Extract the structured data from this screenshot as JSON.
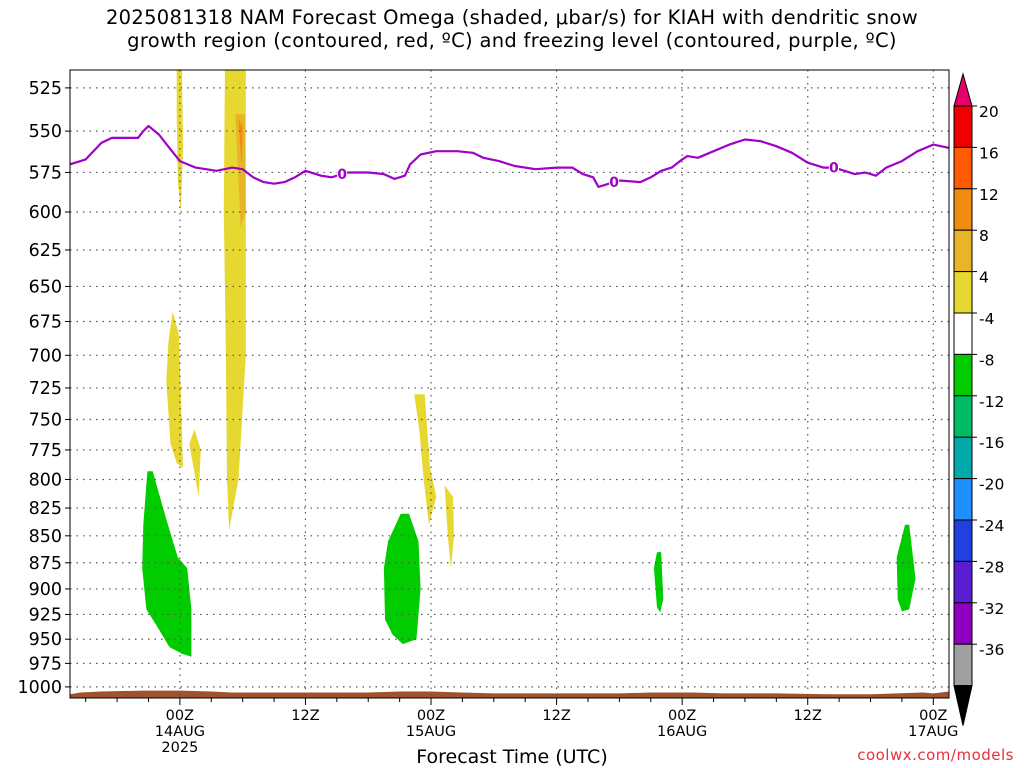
{
  "title_lines": [
    "2025081318 NAM Forecast Omega (shaded, μbar/s) for KIAH with dendritic snow",
    "growth region (contoured, red, ºC) and freezing level (contoured, purple, ºC)"
  ],
  "credit": "coolwx.com/models",
  "colors": {
    "freezing_level": "#a000c8",
    "terrain": "#a0522d",
    "grid": "#555555"
  },
  "chart_data": {
    "type": "heatmap",
    "xlabel": "Forecast Time (UTC)",
    "ylabel": "",
    "x_range_hours": [
      -10.5,
      73.5
    ],
    "x_ticks": [
      {
        "h": 0,
        "lines": [
          "00Z",
          "14AUG",
          "2025"
        ]
      },
      {
        "h": 12,
        "lines": [
          "12Z"
        ]
      },
      {
        "h": 24,
        "lines": [
          "00Z",
          "15AUG"
        ]
      },
      {
        "h": 36,
        "lines": [
          "12Z"
        ]
      },
      {
        "h": 48,
        "lines": [
          "00Z",
          "16AUG"
        ]
      },
      {
        "h": 60,
        "lines": [
          "12Z"
        ]
      },
      {
        "h": 72,
        "lines": [
          "00Z",
          "17AUG"
        ]
      }
    ],
    "y_ticks": [
      525,
      550,
      575,
      600,
      625,
      650,
      675,
      700,
      725,
      750,
      775,
      800,
      825,
      850,
      875,
      900,
      925,
      950,
      975,
      1000
    ],
    "y_range_hPa": [
      515,
      1012
    ],
    "y_scale": "log-pressure (inverted)",
    "grid": true,
    "colorbar": {
      "labels": [
        "20",
        "16",
        "12",
        "8",
        "4",
        "-4",
        "-8",
        "-12",
        "-16",
        "-20",
        "-24",
        "-28",
        "-32",
        "-36"
      ],
      "colors": [
        "#ee0000",
        "#ff5a00",
        "#f08c10",
        "#e8b428",
        "#e6d830",
        "#ffffff",
        "#00cc00",
        "#00bb66",
        "#00aaaa",
        "#1e90ff",
        "#2040e0",
        "#5a1ed2",
        "#9000c0",
        "#a0a0a0"
      ],
      "top_arrow": "#e8006a",
      "bottom_arrow": "#000000"
    },
    "freezing_level_label": "0",
    "freezing_level_0C_hPa": [
      {
        "h": -10.5,
        "p": 570
      },
      {
        "h": -9.0,
        "p": 567
      },
      {
        "h": -7.5,
        "p": 557
      },
      {
        "h": -6.5,
        "p": 554
      },
      {
        "h": -5.0,
        "p": 554
      },
      {
        "h": -4.0,
        "p": 554
      },
      {
        "h": -3.5,
        "p": 550
      },
      {
        "h": -3.0,
        "p": 547
      },
      {
        "h": -2.0,
        "p": 552
      },
      {
        "h": -1.0,
        "p": 560
      },
      {
        "h": 0.0,
        "p": 568
      },
      {
        "h": 1.5,
        "p": 572
      },
      {
        "h": 3.5,
        "p": 574
      },
      {
        "h": 5.0,
        "p": 572
      },
      {
        "h": 6.0,
        "p": 573
      },
      {
        "h": 7.0,
        "p": 578
      },
      {
        "h": 8.0,
        "p": 581
      },
      {
        "h": 9.0,
        "p": 582
      },
      {
        "h": 10.0,
        "p": 581
      },
      {
        "h": 11.0,
        "p": 578
      },
      {
        "h": 12.0,
        "p": 574
      },
      {
        "h": 13.5,
        "p": 577
      },
      {
        "h": 14.5,
        "p": 578
      },
      {
        "h": 16.0,
        "p": 575
      },
      {
        "h": 18.0,
        "p": 575
      },
      {
        "h": 19.5,
        "p": 576
      },
      {
        "h": 20.5,
        "p": 579
      },
      {
        "h": 21.5,
        "p": 577
      },
      {
        "h": 22.0,
        "p": 570
      },
      {
        "h": 23.0,
        "p": 564
      },
      {
        "h": 24.5,
        "p": 562
      },
      {
        "h": 26.5,
        "p": 562
      },
      {
        "h": 28.0,
        "p": 563
      },
      {
        "h": 29.0,
        "p": 566
      },
      {
        "h": 30.5,
        "p": 568
      },
      {
        "h": 32.0,
        "p": 571
      },
      {
        "h": 34.0,
        "p": 573
      },
      {
        "h": 36.0,
        "p": 572
      },
      {
        "h": 37.5,
        "p": 572
      },
      {
        "h": 38.5,
        "p": 576
      },
      {
        "h": 39.5,
        "p": 578
      },
      {
        "h": 40.0,
        "p": 584
      },
      {
        "h": 41.0,
        "p": 582
      },
      {
        "h": 42.0,
        "p": 580
      },
      {
        "h": 44.0,
        "p": 581
      },
      {
        "h": 45.0,
        "p": 578
      },
      {
        "h": 46.0,
        "p": 574
      },
      {
        "h": 47.0,
        "p": 572
      },
      {
        "h": 48.0,
        "p": 567
      },
      {
        "h": 48.5,
        "p": 565
      },
      {
        "h": 49.5,
        "p": 566
      },
      {
        "h": 51.0,
        "p": 562
      },
      {
        "h": 52.5,
        "p": 558
      },
      {
        "h": 54.0,
        "p": 555
      },
      {
        "h": 55.5,
        "p": 556
      },
      {
        "h": 57.0,
        "p": 559
      },
      {
        "h": 58.5,
        "p": 563
      },
      {
        "h": 60.0,
        "p": 569
      },
      {
        "h": 61.5,
        "p": 572
      },
      {
        "h": 62.5,
        "p": 572
      },
      {
        "h": 63.5,
        "p": 574
      },
      {
        "h": 64.5,
        "p": 576
      },
      {
        "h": 65.5,
        "p": 575
      },
      {
        "h": 66.5,
        "p": 577
      },
      {
        "h": 67.5,
        "p": 572
      },
      {
        "h": 69.0,
        "p": 568
      },
      {
        "h": 70.5,
        "p": 562
      },
      {
        "h": 72.0,
        "p": 558
      },
      {
        "h": 73.5,
        "p": 560
      }
    ],
    "freezing_level_label_hours": [
      15.5,
      41.5,
      62.5
    ],
    "omega_regions": [
      {
        "category": "4 to 8",
        "polygon": [
          [
            -0.3,
            515
          ],
          [
            0.2,
            515
          ],
          [
            0.3,
            560
          ],
          [
            0.1,
            600
          ],
          [
            -0.2,
            580
          ],
          [
            -0.3,
            540
          ]
        ]
      },
      {
        "category": "4 to 8",
        "polygon": [
          [
            4.3,
            515
          ],
          [
            6.3,
            515
          ],
          [
            6.3,
            700
          ],
          [
            5.6,
            800
          ],
          [
            4.7,
            845
          ],
          [
            4.5,
            800
          ],
          [
            4.4,
            700
          ],
          [
            4.2,
            600
          ]
        ]
      },
      {
        "category": "4 to 8",
        "polygon": [
          [
            -0.7,
            668
          ],
          [
            -0.1,
            684
          ],
          [
            0.1,
            730
          ],
          [
            0.3,
            790
          ],
          [
            -0.3,
            786
          ],
          [
            -0.9,
            770
          ],
          [
            -1.3,
            720
          ],
          [
            -1.1,
            690
          ]
        ]
      },
      {
        "category": "4 to 8",
        "polygon": [
          [
            1.4,
            758
          ],
          [
            2.0,
            775
          ],
          [
            1.8,
            815
          ],
          [
            1.3,
            790
          ],
          [
            0.9,
            770
          ]
        ]
      },
      {
        "category": "4 to 8",
        "polygon": [
          [
            22.4,
            730
          ],
          [
            23.4,
            730
          ],
          [
            23.9,
            790
          ],
          [
            24.5,
            815
          ],
          [
            23.8,
            840
          ],
          [
            23.3,
            800
          ],
          [
            22.9,
            760
          ]
        ]
      },
      {
        "category": "4 to 8",
        "polygon": [
          [
            25.3,
            805
          ],
          [
            26.1,
            815
          ],
          [
            26.2,
            850
          ],
          [
            25.9,
            880
          ],
          [
            25.6,
            850
          ]
        ]
      },
      {
        "category": "8 to 12",
        "polygon": [
          [
            5.3,
            540
          ],
          [
            6.2,
            540
          ],
          [
            6.3,
            600
          ],
          [
            5.8,
            610
          ]
        ]
      },
      {
        "category": "12 to 16",
        "polygon": [
          [
            5.6,
            543
          ],
          [
            6.0,
            548
          ],
          [
            5.9,
            570
          ]
        ]
      },
      {
        "category": "-8 to -4",
        "polygon": [
          [
            -3.1,
            793
          ],
          [
            -2.6,
            793
          ],
          [
            -1.3,
            835
          ],
          [
            -0.2,
            870
          ],
          [
            0.7,
            880
          ],
          [
            1.1,
            920
          ],
          [
            1.1,
            968
          ],
          [
            0.2,
            965
          ],
          [
            -1.0,
            958
          ],
          [
            -2.0,
            940
          ],
          [
            -3.2,
            920
          ],
          [
            -3.6,
            880
          ],
          [
            -3.5,
            840
          ]
        ]
      },
      {
        "category": "-8 to -4",
        "polygon": [
          [
            21.1,
            830
          ],
          [
            21.9,
            830
          ],
          [
            22.8,
            855
          ],
          [
            23.0,
            900
          ],
          [
            22.6,
            950
          ],
          [
            21.3,
            955
          ],
          [
            20.3,
            945
          ],
          [
            19.6,
            930
          ],
          [
            19.5,
            880
          ],
          [
            19.9,
            855
          ]
        ]
      },
      {
        "category": "-8 to -4",
        "polygon": [
          [
            45.6,
            865
          ],
          [
            46.0,
            865
          ],
          [
            46.2,
            910
          ],
          [
            45.9,
            923
          ],
          [
            45.6,
            918
          ],
          [
            45.3,
            880
          ]
        ]
      },
      {
        "category": "-8 to -4",
        "polygon": [
          [
            69.3,
            840
          ],
          [
            69.7,
            840
          ],
          [
            70.3,
            890
          ],
          [
            69.7,
            920
          ],
          [
            69.0,
            922
          ],
          [
            68.6,
            910
          ],
          [
            68.5,
            870
          ]
        ]
      }
    ],
    "terrain_top_hPa": [
      {
        "h": -10.5,
        "p": 1008
      },
      {
        "h": -9.5,
        "p": 1006
      },
      {
        "h": -7.5,
        "p": 1005
      },
      {
        "h": -3.5,
        "p": 1004
      },
      {
        "h": -1.5,
        "p": 1004
      },
      {
        "h": 0.0,
        "p": 1004
      },
      {
        "h": 3.0,
        "p": 1005
      },
      {
        "h": 5.0,
        "p": 1006
      },
      {
        "h": 10.0,
        "p": 1006
      },
      {
        "h": 14.0,
        "p": 1006
      },
      {
        "h": 18.0,
        "p": 1006
      },
      {
        "h": 21.0,
        "p": 1005
      },
      {
        "h": 24.0,
        "p": 1005
      },
      {
        "h": 27.0,
        "p": 1006
      },
      {
        "h": 30.0,
        "p": 1007
      },
      {
        "h": 36.0,
        "p": 1007
      },
      {
        "h": 42.0,
        "p": 1007
      },
      {
        "h": 45.0,
        "p": 1006
      },
      {
        "h": 49.0,
        "p": 1006
      },
      {
        "h": 52.0,
        "p": 1007
      },
      {
        "h": 57.0,
        "p": 1007
      },
      {
        "h": 62.0,
        "p": 1008
      },
      {
        "h": 66.0,
        "p": 1008
      },
      {
        "h": 68.5,
        "p": 1007
      },
      {
        "h": 71.0,
        "p": 1006
      },
      {
        "h": 72.0,
        "p": 1007
      },
      {
        "h": 73.5,
        "p": 1005
      }
    ]
  }
}
